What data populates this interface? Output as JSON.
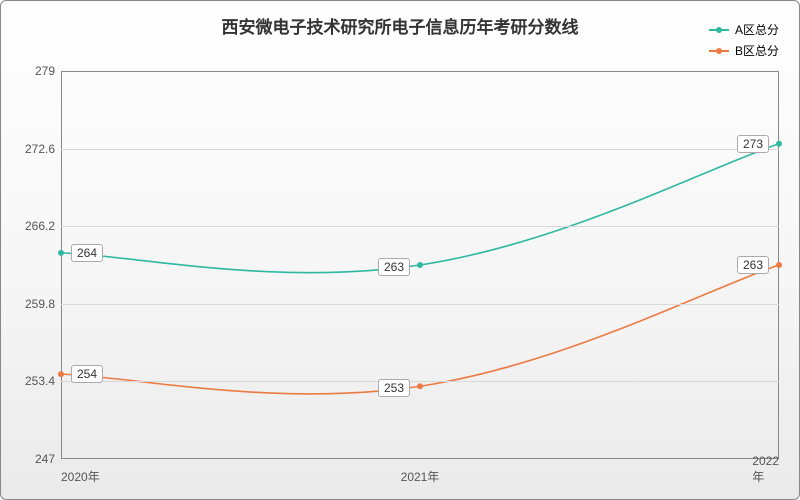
{
  "chart": {
    "type": "line",
    "title": "西安微电子技术研究所电子信息历年考研分数线",
    "title_fontsize": 17,
    "title_color": "#333333",
    "background_gradient": [
      "#ffffff",
      "#f5f5f5",
      "#eaeaea"
    ],
    "border_color": "#888888",
    "grid_color": "#d8d8d8",
    "axis_color": "#888888",
    "label_fontsize": 12,
    "label_color": "#555555",
    "datalabel_fontsize": 12,
    "datalabel_bg": "#ffffff",
    "datalabel_border": "#aaaaaa",
    "x_categories": [
      "2020年",
      "2021年",
      "2022年"
    ],
    "ylim": [
      247,
      279
    ],
    "yticks": [
      247,
      253.4,
      259.8,
      266.2,
      272.6,
      279
    ],
    "line_width": 1.6,
    "marker_radius": 3,
    "curve_smooth": true,
    "series": [
      {
        "name": "A区总分",
        "color": "#2fb8a0",
        "values": [
          264,
          263,
          273
        ],
        "label_offsets": [
          [
            26,
            0
          ],
          [
            -26,
            2
          ],
          [
            -26,
            0
          ]
        ]
      },
      {
        "name": "B区总分",
        "color": "#ec7a42",
        "values": [
          254,
          253,
          263
        ],
        "label_offsets": [
          [
            26,
            0
          ],
          [
            -26,
            2
          ],
          [
            -26,
            0
          ]
        ]
      }
    ],
    "legend": {
      "position": "top-right",
      "fontsize": 12
    }
  }
}
